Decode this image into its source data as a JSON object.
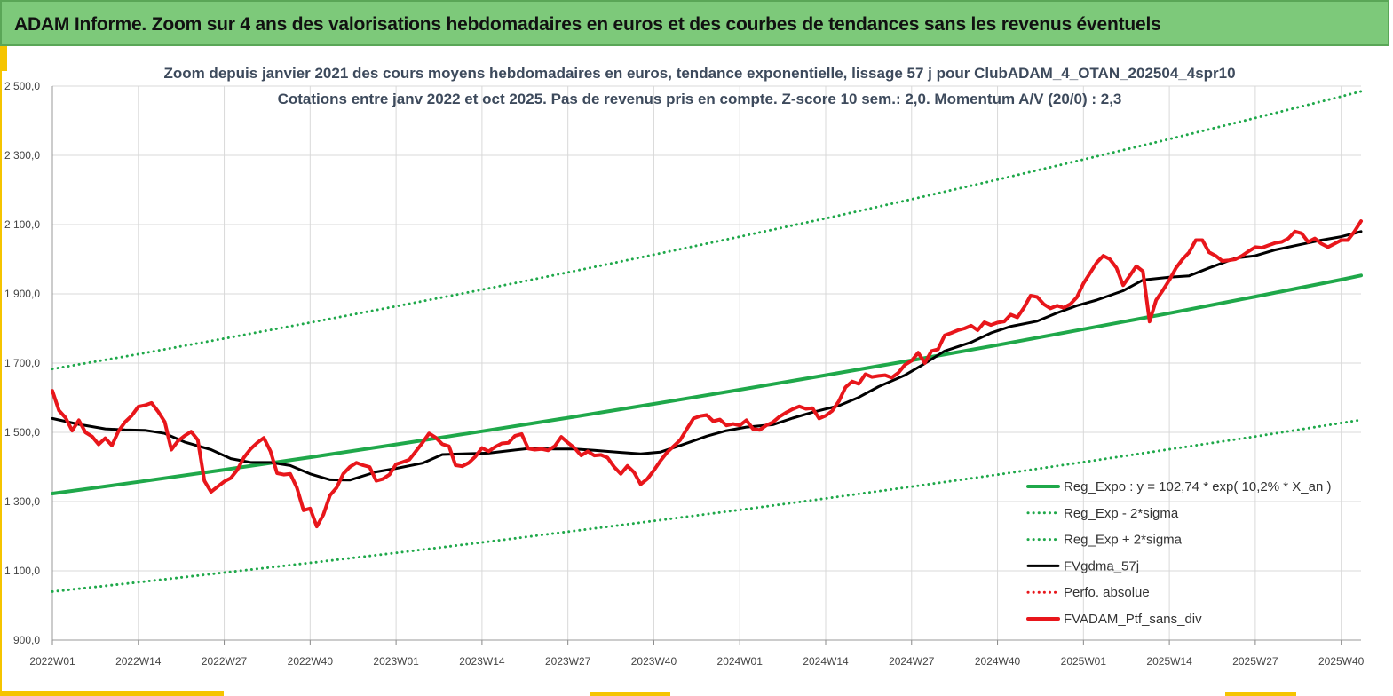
{
  "banner": {
    "title": "ADAM Informe. Zoom sur 4 ans des valorisations hebdomadaires en euros et des courbes de tendances sans les revenus éventuels"
  },
  "colors": {
    "banner_bg": "#7dc97a",
    "accent": "#f5c400",
    "trend": "#1fa84a",
    "smooth": "#000000",
    "portfolio": "#e8161b"
  },
  "chart_data": {
    "type": "line",
    "title": "Zoom depuis janvier 2021 des cours moyens hebdomadaires  en euros, tendance exponentielle, lissage 57 j pour ClubADAM_4_OTAN_202504_4spr10",
    "subtitle": "Cotations  entre janv 2022 et oct 2025. Pas de revenus pris en compte. Z-score 10 sem.: 2,0. Momentum A/V (20/0) : 2,3",
    "xlabel": "",
    "ylabel": "",
    "ylim": [
      900,
      2500
    ],
    "y_ticks": [
      900,
      1100,
      1300,
      1500,
      1700,
      1900,
      2100,
      2300,
      2500
    ],
    "y_tick_labels": [
      "900,0",
      "1 100,0",
      "1 300,0",
      "1 500,0",
      "1 700,0",
      "1 900,0",
      "2 100,0",
      "2 300,0",
      "2 500,0"
    ],
    "x_range": [
      0,
      198
    ],
    "x_ticks": [
      0,
      13,
      26,
      39,
      52,
      65,
      78,
      91,
      104,
      117,
      130,
      143,
      156,
      169,
      182,
      195
    ],
    "x_tick_labels": [
      "2022W01",
      "2022W14",
      "2022W27",
      "2022W40",
      "2023W01",
      "2023W14",
      "2023W27",
      "2023W40",
      "2024W01",
      "2024W14",
      "2024W27",
      "2024W40",
      "2025W01",
      "2025W14",
      "2025W27",
      "2025W40"
    ],
    "grid": true,
    "legend_position": "bottom-right",
    "series": [
      {
        "name": "Reg_Expo : y = 102,74 * exp( 10,2% *  X_an )",
        "style": "solid-thick",
        "color": "#1fa84a",
        "x": [
          0,
          13,
          26,
          39,
          52,
          65,
          78,
          91,
          104,
          117,
          130,
          143,
          156,
          169,
          182,
          195,
          198
        ],
        "values": [
          1323,
          1357,
          1392,
          1428,
          1465,
          1503,
          1542,
          1582,
          1623,
          1665,
          1708,
          1752,
          1798,
          1844,
          1892,
          1941,
          1953
        ]
      },
      {
        "name": "Reg_Exp - 2*sigma",
        "style": "dotted",
        "color": "#1fa84a",
        "x": [
          0,
          13,
          26,
          39,
          52,
          65,
          78,
          91,
          104,
          117,
          130,
          143,
          156,
          169,
          182,
          195,
          198
        ],
        "values": [
          1040,
          1067,
          1095,
          1123,
          1152,
          1182,
          1213,
          1244,
          1276,
          1309,
          1343,
          1378,
          1414,
          1451,
          1488,
          1527,
          1536
        ]
      },
      {
        "name": "Reg_Exp + 2*sigma",
        "style": "dotted",
        "color": "#1fa84a",
        "x": [
          0,
          13,
          26,
          39,
          52,
          65,
          78,
          91,
          104,
          117,
          130,
          143,
          156,
          169,
          182,
          195,
          198
        ],
        "values": [
          1683,
          1726,
          1771,
          1817,
          1864,
          1912,
          1962,
          2013,
          2065,
          2118,
          2173,
          2230,
          2288,
          2347,
          2408,
          2470,
          2485
        ]
      },
      {
        "name": "FVgdma_57j",
        "style": "solid",
        "color": "#000000",
        "x": [
          0,
          4,
          8,
          11,
          14,
          17,
          20,
          24,
          27,
          30,
          33,
          36,
          39,
          42,
          45,
          49,
          52,
          56,
          59,
          62,
          66,
          69,
          72,
          76,
          79,
          82,
          86,
          89,
          92,
          95,
          99,
          102,
          105,
          109,
          112,
          115,
          119,
          122,
          125,
          129,
          132,
          135,
          139,
          142,
          145,
          149,
          152,
          155,
          158,
          162,
          165,
          169,
          172,
          175,
          179,
          182,
          185,
          189,
          192,
          195,
          198
        ],
        "values": [
          1540,
          1523,
          1510,
          1507,
          1506,
          1497,
          1472,
          1450,
          1424,
          1413,
          1413,
          1404,
          1380,
          1363,
          1362,
          1386,
          1396,
          1411,
          1436,
          1438,
          1440,
          1447,
          1453,
          1452,
          1452,
          1448,
          1442,
          1438,
          1443,
          1462,
          1489,
          1505,
          1515,
          1522,
          1541,
          1558,
          1577,
          1601,
          1632,
          1665,
          1699,
          1735,
          1760,
          1787,
          1806,
          1821,
          1845,
          1866,
          1882,
          1909,
          1940,
          1948,
          1952,
          1975,
          2003,
          2010,
          2027,
          2043,
          2055,
          2065,
          2080
        ]
      },
      {
        "name": "Perfo. absolue",
        "style": "dotted",
        "color": "#e8161b",
        "x": [],
        "values": []
      },
      {
        "name": "FVADAM_Ptf_sans_div",
        "style": "solid-thick",
        "color": "#e8161b",
        "x": [
          0,
          1,
          2,
          3,
          4,
          5,
          6,
          7,
          8,
          9,
          10,
          11,
          12,
          13,
          14,
          15,
          16,
          17,
          18,
          19,
          20,
          21,
          22,
          23,
          24,
          25,
          26,
          27,
          28,
          29,
          30,
          31,
          32,
          33,
          34,
          35,
          36,
          37,
          38,
          39,
          40,
          41,
          42,
          43,
          44,
          45,
          46,
          47,
          48,
          49,
          50,
          51,
          52,
          53,
          54,
          55,
          56,
          57,
          58,
          59,
          60,
          61,
          62,
          63,
          64,
          65,
          66,
          67,
          68,
          69,
          70,
          71,
          72,
          73,
          74,
          75,
          76,
          77,
          78,
          79,
          80,
          81,
          82,
          83,
          84,
          85,
          86,
          87,
          88,
          89,
          90,
          91,
          92,
          93,
          94,
          95,
          96,
          97,
          98,
          99,
          100,
          101,
          102,
          103,
          104,
          105,
          106,
          107,
          108,
          109,
          110,
          111,
          112,
          113,
          114,
          115,
          116,
          117,
          118,
          119,
          120,
          121,
          122,
          123,
          124,
          125,
          126,
          127,
          128,
          129,
          130,
          131,
          132,
          133,
          134,
          135,
          136,
          137,
          138,
          139,
          140,
          141,
          142,
          143,
          144,
          145,
          146,
          147,
          148,
          149,
          150,
          151,
          152,
          153,
          154,
          155,
          156,
          157,
          158,
          159,
          160,
          161,
          162,
          163,
          164,
          165,
          166,
          167,
          168,
          169,
          170,
          171,
          172,
          173,
          174,
          175,
          176,
          177,
          178,
          179,
          180,
          181,
          182,
          183,
          184,
          185,
          186,
          187,
          188,
          189,
          190,
          191,
          192,
          193,
          194,
          195,
          196,
          197,
          198
        ],
        "values": [
          1620,
          1563,
          1542,
          1505,
          1535,
          1500,
          1488,
          1465,
          1483,
          1462,
          1503,
          1530,
          1548,
          1574,
          1578,
          1585,
          1560,
          1530,
          1450,
          1475,
          1490,
          1502,
          1478,
          1360,
          1328,
          1343,
          1358,
          1368,
          1392,
          1428,
          1452,
          1470,
          1484,
          1445,
          1382,
          1378,
          1380,
          1340,
          1275,
          1280,
          1228,
          1262,
          1318,
          1340,
          1380,
          1400,
          1412,
          1405,
          1400,
          1360,
          1365,
          1378,
          1408,
          1414,
          1421,
          1445,
          1470,
          1497,
          1485,
          1466,
          1460,
          1405,
          1402,
          1412,
          1430,
          1455,
          1445,
          1458,
          1468,
          1470,
          1490,
          1495,
          1453,
          1450,
          1452,
          1448,
          1460,
          1487,
          1470,
          1455,
          1433,
          1445,
          1433,
          1435,
          1427,
          1400,
          1380,
          1403,
          1385,
          1350,
          1365,
          1390,
          1418,
          1442,
          1460,
          1478,
          1510,
          1540,
          1547,
          1550,
          1532,
          1537,
          1520,
          1524,
          1520,
          1535,
          1510,
          1507,
          1520,
          1529,
          1545,
          1557,
          1567,
          1575,
          1568,
          1570,
          1540,
          1548,
          1562,
          1590,
          1630,
          1647,
          1640,
          1668,
          1660,
          1663,
          1665,
          1658,
          1672,
          1695,
          1707,
          1730,
          1700,
          1735,
          1740,
          1780,
          1787,
          1795,
          1800,
          1808,
          1795,
          1818,
          1810,
          1817,
          1820,
          1840,
          1832,
          1860,
          1895,
          1891,
          1870,
          1858,
          1866,
          1860,
          1870,
          1890,
          1930,
          1960,
          1990,
          2010,
          2000,
          1975,
          1925,
          1952,
          1980,
          1965,
          1820,
          1882,
          1910,
          1940,
          1975,
          2000,
          2020,
          2055,
          2055,
          2020,
          2010,
          1995,
          1997,
          2000,
          2010,
          2023,
          2035,
          2033,
          2040,
          2047,
          2050,
          2060,
          2080,
          2075,
          2050,
          2060,
          2045,
          2035,
          2045,
          2055,
          2055,
          2080,
          2110
        ]
      }
    ]
  }
}
